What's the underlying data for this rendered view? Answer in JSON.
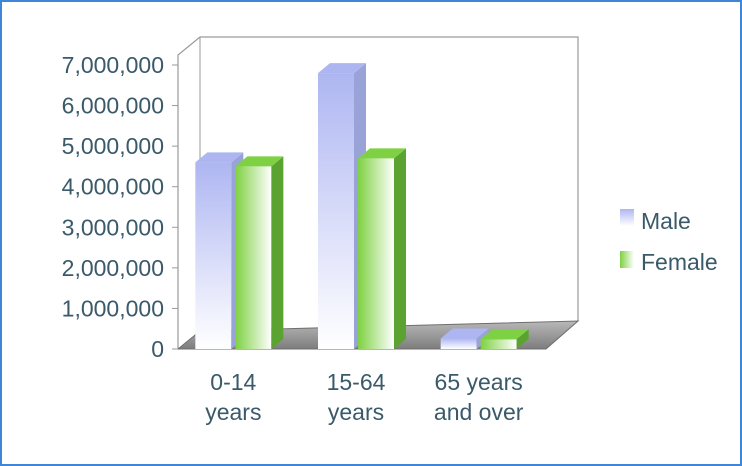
{
  "colors": {
    "frame_border": "#3f86d8",
    "male_front_top": "#aeb6f2",
    "male_front_bottom": "#ffffff",
    "female_front_left": "#7ed142",
    "female_front_right": "#ffffff",
    "text": "#3a5a6a",
    "floor": "#9a9a9a",
    "wall_line": "#9a9a9a"
  },
  "chart_data": {
    "type": "bar",
    "categories": [
      [
        "0-14",
        "years"
      ],
      [
        "15-64",
        "years"
      ],
      [
        "65 years",
        "and over"
      ]
    ],
    "series": [
      {
        "name": "Male",
        "values": [
          4600000,
          6800000,
          260000
        ]
      },
      {
        "name": "Female",
        "values": [
          4500000,
          4700000,
          240000
        ]
      }
    ],
    "yticks": [
      "0",
      "1,000,000",
      "2,000,000",
      "3,000,000",
      "4,000,000",
      "5,000,000",
      "6,000,000",
      "7,000,000"
    ],
    "ylim": [
      0,
      7000000
    ],
    "grid": false,
    "legend_position": "right",
    "style": "3d-column"
  }
}
